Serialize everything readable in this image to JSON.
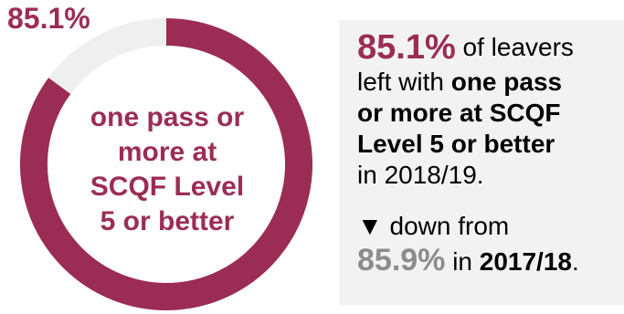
{
  "chart_data": {
    "type": "pie",
    "variant": "donut",
    "headline": "85.1%",
    "center_label": [
      "one pass or",
      "more at",
      "SCQF Level",
      "5 or better"
    ],
    "slices": [
      {
        "label": "one pass or more at SCQF Level 5 or better",
        "value": 85.1,
        "color": "#9b2d55"
      },
      {
        "label": "",
        "value": 14.9,
        "color": "#efefef"
      }
    ]
  },
  "info": {
    "pct": "85.1%",
    "t1": "of leavers",
    "t2": "left with",
    "b1": "one pass",
    "b2": "or more at SCQF",
    "b3": "Level 5 or better",
    "t3": "in 2018/19.",
    "arrow": "▼",
    "down_text": "down from",
    "prev_pct": "85.9%",
    "in_word": "in",
    "prev_year": "2017/18",
    "period": "."
  },
  "colors": {
    "accent": "#9b2d55",
    "muted": "#8c8c8c",
    "box_bg": "#f2f2f2",
    "remainder": "#efefef"
  }
}
